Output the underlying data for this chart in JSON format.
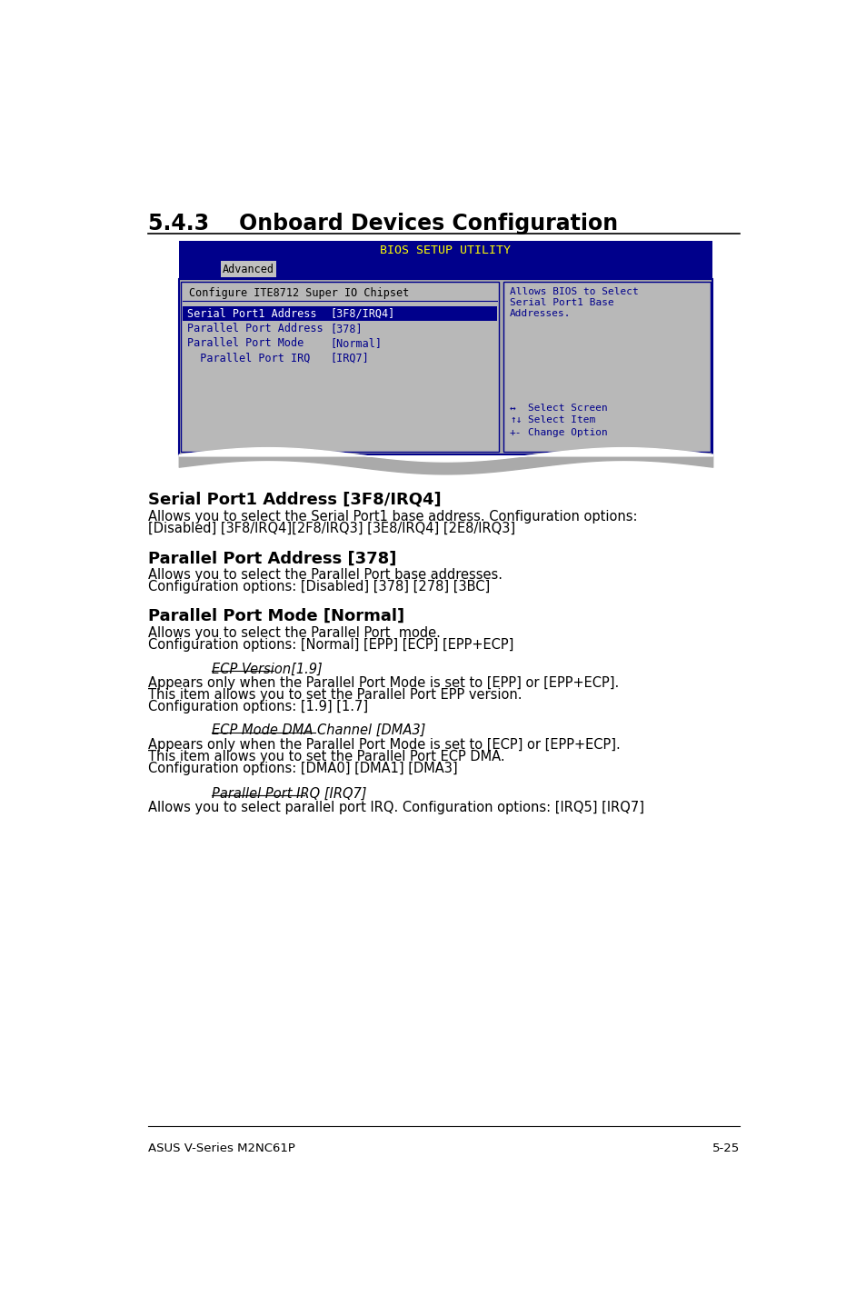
{
  "title_section": "5.4.3    Onboard Devices Configuration",
  "bios_title": "BIOS SETUP UTILITY",
  "bios_tab": "Advanced",
  "bios_config_label": "Configure ITE8712 Super IO Chipset",
  "bios_items": [
    {
      "label": "Serial Port1 Address",
      "value": "[3F8/IRQ4]",
      "highlighted": true
    },
    {
      "label": "Parallel Port Address",
      "value": "[378]",
      "highlighted": false
    },
    {
      "label": "Parallel Port Mode",
      "value": "[Normal]",
      "highlighted": false
    },
    {
      "label": "  Parallel Port IRQ",
      "value": "[IRQ7]",
      "highlighted": false
    }
  ],
  "bios_help_lines": [
    "Allows BIOS to Select",
    "Serial Port1 Base",
    "Addresses."
  ],
  "section_heading1": "Serial Port1 Address [3F8/IRQ4]",
  "section_text1a": "Allows you to select the Serial Port1 base address. Configuration options:",
  "section_text1b": "[Disabled] [3F8/IRQ4][2F8/IRQ3] [3E8/IRQ4] [2E8/IRQ3]",
  "section_heading2": "Parallel Port Address [378]",
  "section_text2a": "Allows you to select the Parallel Port base addresses.",
  "section_text2b": "Configuration options: [Disabled] [378] [278] [3BC]",
  "section_heading3": "Parallel Port Mode [Normal]",
  "section_text3a": "Allows you to select the Parallel Port  mode.",
  "section_text3b": "Configuration options: [Normal] [EPP] [ECP] [EPP+ECP]",
  "subsection_heading1": "ECP Version[1.9]",
  "subsection_text1a": "Appears only when the Parallel Port Mode is set to [EPP] or [EPP+ECP].",
  "subsection_text1b": "This item allows you to set the Parallel Port EPP version.",
  "subsection_text1c": "Configuration options: [1.9] [1.7]",
  "subsection_heading2": "ECP Mode DMA Channel [DMA3]",
  "subsection_text2a": "Appears only when the Parallel Port Mode is set to [ECP] or [EPP+ECP].",
  "subsection_text2b": "This item allows you to set the Parallel Port ECP DMA.",
  "subsection_text2c": "Configuration options: [DMA0] [DMA1] [DMA3]",
  "subsection_heading3": "Parallel Port IRQ [IRQ7]",
  "subsection_text3": "Allows you to select parallel port IRQ. Configuration options: [IRQ5] [IRQ7]",
  "footer_left": "ASUS V-Series M2NC61P",
  "footer_right": "5-25",
  "bg_color": "#ffffff",
  "bios_header_bg": "#00008B",
  "bios_header_text": "#ffff00",
  "bios_body_bg": "#aaaaaa",
  "bios_item_color": "#00008B",
  "bios_highlight_bg": "#00008B",
  "bios_highlight_text": "#ffffff",
  "bios_border_color": "#00008B",
  "bios_help_color": "#00008B",
  "bios_nav_color": "#00008B"
}
